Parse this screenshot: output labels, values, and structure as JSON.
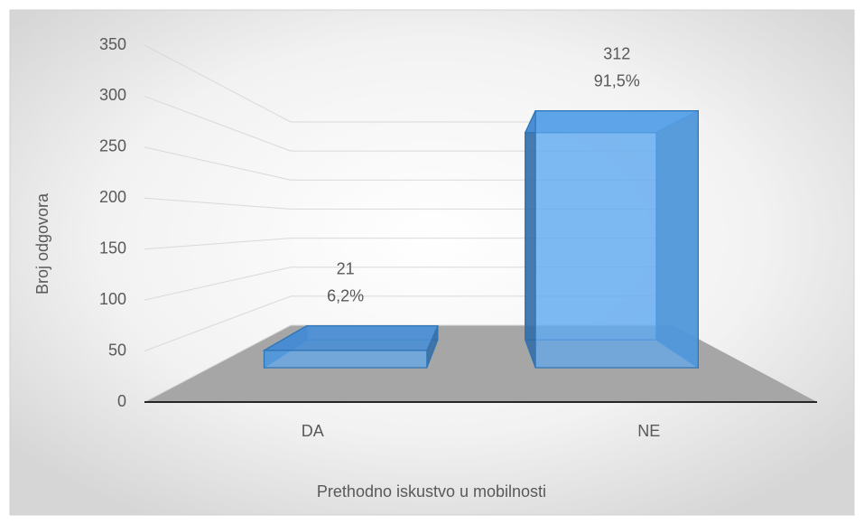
{
  "chart_data": {
    "type": "bar",
    "x_label": "Prethodno iskustvo u mobilnosti",
    "y_label": "Broj odgovora",
    "categories": [
      "DA",
      "NE"
    ],
    "values": [
      21,
      312
    ],
    "shares": [
      6.2,
      91.5
    ],
    "share_labels": [
      "6,2%",
      "91,5%"
    ],
    "color": "#5ea8ef",
    "floor_color": "#a6a6a6",
    "ylim": [
      0,
      350
    ],
    "yticks": [
      0,
      50,
      100,
      150,
      200,
      250,
      300,
      350
    ],
    "grid": true
  }
}
